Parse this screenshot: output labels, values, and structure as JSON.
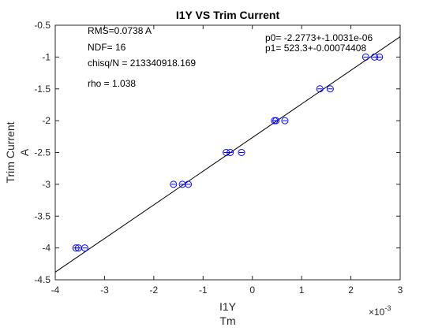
{
  "chart_data": {
    "type": "scatter",
    "title": "I1Y VS Trim Current",
    "xlabel_line1": "I1Y",
    "xlabel_line2": "Tm",
    "ylabel_line1": "Trim Current",
    "ylabel_line2": "A",
    "x_exponent_base": "×10",
    "x_exponent_power": "-3",
    "xlim": [
      -4,
      3
    ],
    "ylim": [
      -4.5,
      -0.5
    ],
    "xticks": [
      -4,
      -3,
      -2,
      -1,
      0,
      1,
      2,
      3
    ],
    "yticks": [
      -4.5,
      -4,
      -3.5,
      -3,
      -2.5,
      -2,
      -1.5,
      -1,
      -0.5
    ],
    "xtick_labels": [
      "-4",
      "-3",
      "-2",
      "-1",
      "0",
      "1",
      "2",
      "3"
    ],
    "ytick_labels": [
      "-4.5",
      "-4",
      "-3.5",
      "-3",
      "-2.5",
      "-2",
      "-1.5",
      "-1",
      "-0.5"
    ],
    "grid": false,
    "marker_color": "#0000ff",
    "fit_color": "#000000",
    "points": [
      {
        "x": -3.58,
        "y": -4.0
      },
      {
        "x": -3.53,
        "y": -4.0
      },
      {
        "x": -3.4,
        "y": -4.0
      },
      {
        "x": -1.6,
        "y": -3.0
      },
      {
        "x": -1.42,
        "y": -3.0
      },
      {
        "x": -1.3,
        "y": -3.0
      },
      {
        "x": -0.53,
        "y": -2.5
      },
      {
        "x": -0.45,
        "y": -2.5
      },
      {
        "x": -0.22,
        "y": -2.5
      },
      {
        "x": 0.45,
        "y": -2.0
      },
      {
        "x": 0.48,
        "y": -2.0
      },
      {
        "x": 0.66,
        "y": -2.0
      },
      {
        "x": 1.37,
        "y": -1.5
      },
      {
        "x": 1.58,
        "y": -1.5
      },
      {
        "x": 2.3,
        "y": -1.0
      },
      {
        "x": 2.48,
        "y": -1.0
      },
      {
        "x": 2.58,
        "y": -1.0
      }
    ],
    "fit_line": {
      "x": [
        -4,
        3
      ],
      "y": [
        -4.38,
        -0.68
      ]
    },
    "annotations": {
      "rms": "RMS=0.0738 A",
      "ndf": "NDF=   16",
      "chisq": "chisq/N = 213340918.169",
      "rho": "rho     =  1.038",
      "p0": "p0=  -2.2773+-1.0031e-06",
      "p1": "p1=    523.3+-0.00074408"
    }
  }
}
